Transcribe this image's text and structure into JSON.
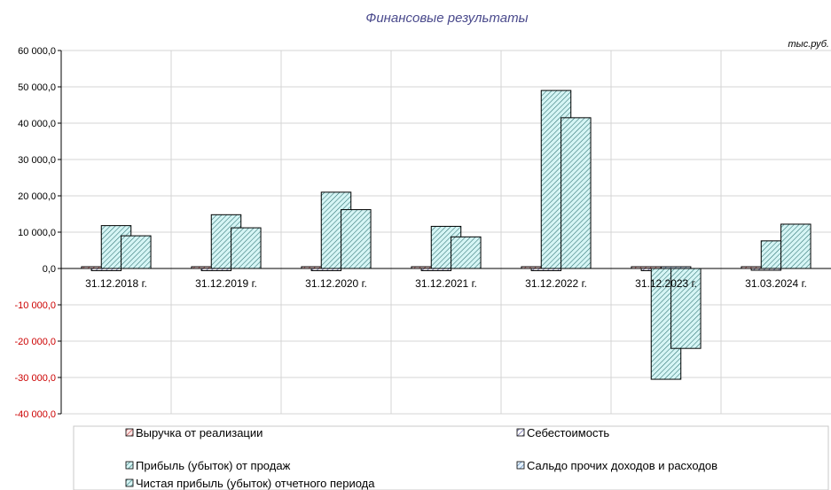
{
  "chart_data": {
    "type": "bar",
    "title": "Финансовые результаты",
    "unit_label": "тыс.руб.",
    "categories": [
      "31.12.2018 г.",
      "31.12.2019 г.",
      "31.12.2020 г.",
      "31.12.2021 г.",
      "31.12.2022 г.",
      "31.12.2023 г.",
      "31.03.2024 г."
    ],
    "ylim": [
      -40000,
      60000
    ],
    "y_ticks": [
      -40000,
      -30000,
      -20000,
      -10000,
      0,
      10000,
      20000,
      30000,
      40000,
      50000,
      60000
    ],
    "y_tick_labels": [
      "-40 000,0",
      "-30 000,0",
      "-20 000,0",
      "-10 000,0",
      "0,0",
      "10 000,0",
      "20 000,0",
      "30 000,0",
      "40 000,0",
      "50 000,0",
      "60 000,0"
    ],
    "grid": true,
    "legend_position": "bottom",
    "series": [
      {
        "name": "Выручка от реализации",
        "values": [
          0,
          0,
          0,
          0,
          0,
          0,
          0
        ],
        "color": "#ff9999"
      },
      {
        "name": "Себестоимость",
        "values": [
          -600,
          -600,
          -600,
          -600,
          -600,
          -600,
          -400
        ],
        "color": "#9999cc"
      },
      {
        "name": "Прибыль (убыток) от продаж",
        "values": [
          11800,
          14800,
          21000,
          11600,
          49000,
          -30500,
          7600
        ],
        "color": "#99e6e6"
      },
      {
        "name": "Сальдо прочих доходов и расходов",
        "values": [
          0,
          0,
          0,
          0,
          0,
          0,
          0
        ],
        "color": "#99ccff"
      },
      {
        "name": "Чистая прибыль (убыток) отчетного периода",
        "values": [
          9000,
          11200,
          16200,
          8700,
          41500,
          -22000,
          12200
        ],
        "color": "#99e6e6"
      }
    ]
  }
}
